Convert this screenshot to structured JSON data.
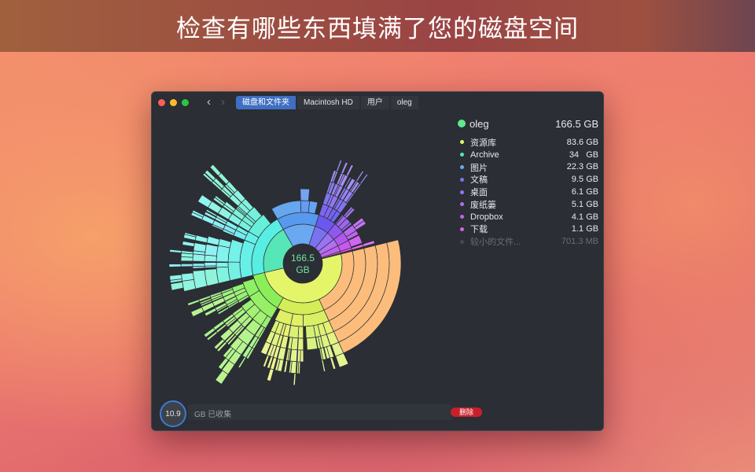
{
  "banner": {
    "title": "检查有哪些东西填满了您的磁盘空间"
  },
  "window": {
    "breadcrumb": [
      "磁盘和文件夹",
      "Macintosh HD",
      "用户",
      "oleg"
    ],
    "nav": {
      "back_icon": "chevron-left",
      "forward_icon": "chevron-right"
    }
  },
  "chart": {
    "center_value": "166.5",
    "center_unit": "GB"
  },
  "legend": {
    "root": {
      "name": "oleg",
      "size": "166.5 GB",
      "color": "#5ee890"
    },
    "items": [
      {
        "name": "资源库",
        "size": "83.6 GB",
        "gb": 83.6,
        "color": "#e4f56a",
        "hue": 65
      },
      {
        "name": "Archive",
        "size": "34   GB",
        "gb": 34,
        "color": "#56e6b8",
        "hue": 165
      },
      {
        "name": "图片",
        "size": "22.3 GB",
        "gb": 22.3,
        "color": "#6aa8f2",
        "hue": 214
      },
      {
        "name": "文稿",
        "size": "9.5 GB",
        "gb": 9.5,
        "color": "#7a72f2",
        "hue": 248
      },
      {
        "name": "桌面",
        "size": "6.1 GB",
        "gb": 6.1,
        "color": "#9a72f2",
        "hue": 262
      },
      {
        "name": "废纸篓",
        "size": "5.1 GB",
        "gb": 5.1,
        "color": "#b070f0",
        "hue": 275
      },
      {
        "name": "Dropbox",
        "size": "4.1 GB",
        "gb": 4.1,
        "color": "#c062f0",
        "hue": 285
      },
      {
        "name": "下载",
        "size": "1.1 GB",
        "gb": 1.1,
        "color": "#d862e4",
        "hue": 296
      },
      {
        "name": "较小的文件...",
        "size": "701.3 MB",
        "gb": 0.7,
        "color": "#45484e",
        "hue": 0,
        "muted": true
      }
    ]
  },
  "bottom": {
    "collected_value": "10.9",
    "collected_label": "GB 已收集",
    "delete_label": "删除",
    "accent": "#3f7ad6",
    "delete_color": "#c8202a"
  }
}
